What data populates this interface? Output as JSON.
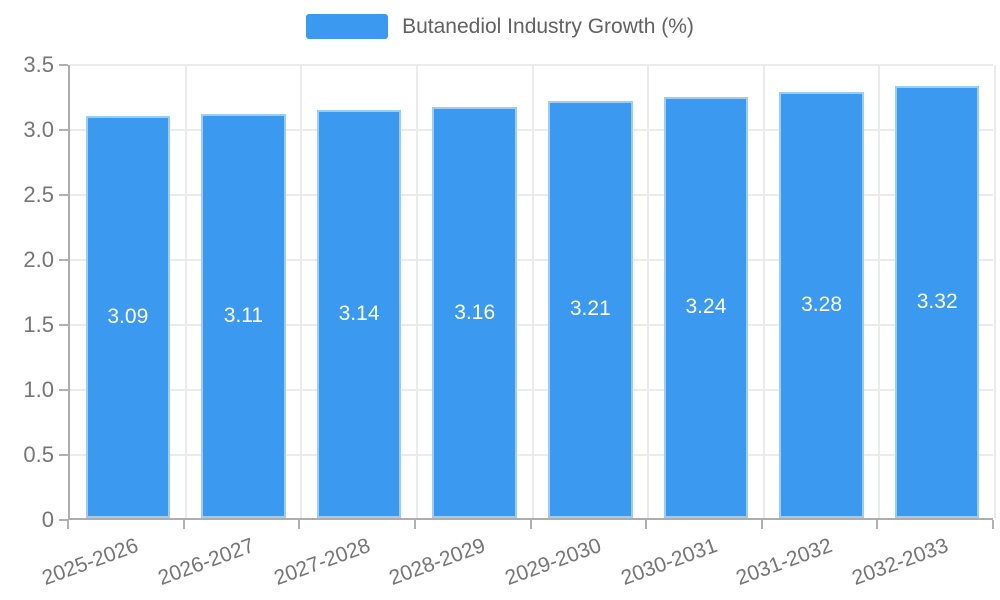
{
  "legend": {
    "label": "Butanediol Industry Growth (%)"
  },
  "chart_data": {
    "type": "bar",
    "title": "Butanediol Industry Growth (%)",
    "categories": [
      "2025-2026",
      "2026-2027",
      "2027-2028",
      "2028-2029",
      "2029-2030",
      "2030-2031",
      "2031-2032",
      "2032-2033"
    ],
    "values": [
      3.09,
      3.11,
      3.14,
      3.16,
      3.21,
      3.24,
      3.28,
      3.32
    ],
    "value_labels": [
      "3.09",
      "3.11",
      "3.14",
      "3.16",
      "3.21",
      "3.24",
      "3.28",
      "3.32"
    ],
    "xlabel": "",
    "ylabel": "",
    "ylim": [
      0,
      3.5
    ],
    "ytick_step": 0.5,
    "ytick_labels": [
      "0",
      "0.5",
      "1.0",
      "1.5",
      "2.0",
      "2.5",
      "3.0",
      "3.5"
    ],
    "grid": true,
    "legend_position": "top-center",
    "bar_width_ratio": 0.73,
    "xlabel_rotation_deg": -20,
    "colors": {
      "bar": "#3b99ef",
      "bar_edge": "rgba(255,255,255,0.5)",
      "grid": "#ebebeb",
      "axis": "#adadad",
      "tick": "#b1b1b1",
      "axis_text": "#757575",
      "value_text": "#ffffff",
      "legend_text": "#616161",
      "background": "#ffffff"
    }
  }
}
